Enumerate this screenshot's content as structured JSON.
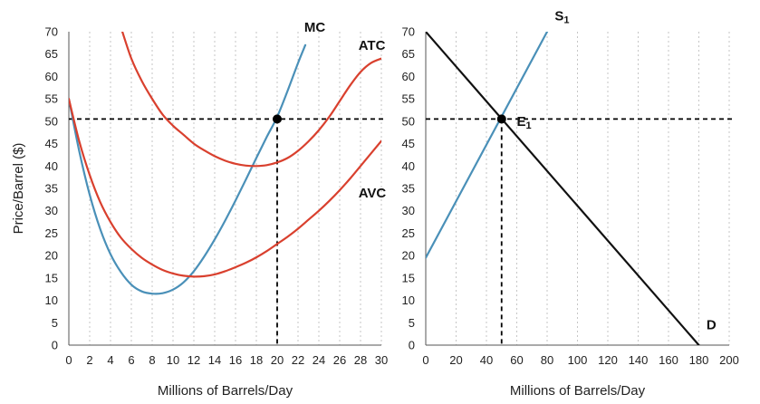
{
  "colors": {
    "blue": "#4a90b8",
    "red": "#d9402e",
    "black": "#111111"
  },
  "chart_data": [
    {
      "type": "line",
      "title": "",
      "xlabel": "Millions of Barrels/Day",
      "ylabel": "Price/Barrel ($)",
      "xlim": [
        0,
        30
      ],
      "ylim": [
        0,
        70
      ],
      "xticks": [
        0,
        2,
        4,
        6,
        8,
        10,
        12,
        14,
        16,
        18,
        20,
        22,
        24,
        26,
        28,
        30
      ],
      "yticks": [
        0,
        5,
        10,
        15,
        20,
        25,
        30,
        35,
        40,
        45,
        50,
        55,
        60,
        65,
        70
      ],
      "grid": "vertical dotted",
      "series": [
        {
          "name": "MC",
          "label": "MC",
          "color": "#4a90b8",
          "x": [
            0,
            1,
            2,
            3,
            4,
            5,
            6,
            7,
            8,
            9,
            10,
            11,
            12,
            13,
            14,
            15,
            16,
            17,
            18,
            19,
            20,
            21,
            22,
            22.7
          ],
          "y": [
            55,
            43.3,
            33.6,
            26,
            20.3,
            16.3,
            13.5,
            12,
            11.5,
            11.6,
            12.4,
            14,
            16.5,
            19.8,
            23.6,
            27.8,
            32.3,
            37,
            41.8,
            46.5,
            51,
            56.8,
            63,
            67
          ]
        },
        {
          "name": "ATC",
          "label": "ATC",
          "color": "#d9402e",
          "x": [
            5,
            6,
            7,
            8,
            9,
            10,
            11,
            12,
            13,
            14,
            15,
            16,
            17,
            18,
            19,
            20,
            21,
            22,
            23,
            24,
            25,
            26,
            27,
            28,
            29,
            30
          ],
          "y": [
            71,
            64,
            59,
            55,
            51.5,
            49,
            47,
            45,
            43.5,
            42.2,
            41.2,
            40.5,
            40.1,
            40,
            40.2,
            40.8,
            41.8,
            43.4,
            45.5,
            48,
            51,
            54.5,
            58,
            61,
            63,
            64
          ]
        },
        {
          "name": "AVC",
          "label": "AVC",
          "color": "#d9402e",
          "x": [
            0,
            1,
            2,
            3,
            4,
            5,
            6,
            7,
            8,
            9,
            10,
            11,
            12,
            13,
            14,
            15,
            16,
            17,
            18,
            19,
            20,
            21,
            22,
            23,
            24,
            25,
            26,
            27,
            28,
            29,
            30
          ],
          "y": [
            55,
            45.5,
            38,
            32,
            27.5,
            24,
            21.5,
            19.5,
            18,
            16.8,
            16,
            15.5,
            15.3,
            15.4,
            15.8,
            16.5,
            17.4,
            18.4,
            19.6,
            21,
            22.6,
            24.2,
            26,
            28,
            30,
            32.2,
            34.6,
            37.2,
            40,
            42.8,
            45.6
          ]
        }
      ],
      "points": [
        {
          "label": "",
          "x": 20,
          "y": 50.5
        }
      ],
      "guides": {
        "x": 20,
        "y": 50.5
      },
      "label_positions": {
        "MC": [
          22.6,
          70
        ],
        "ATC": [
          27.8,
          66
        ],
        "AVC": [
          27.8,
          33
        ]
      }
    },
    {
      "type": "line",
      "title": "",
      "xlabel": "Millions of Barrels/Day",
      "ylabel": "",
      "xlim": [
        0,
        200
      ],
      "ylim": [
        0,
        70
      ],
      "xticks": [
        0,
        20,
        40,
        60,
        80,
        100,
        120,
        140,
        160,
        180,
        200
      ],
      "yticks": [
        0,
        5,
        10,
        15,
        20,
        25,
        30,
        35,
        40,
        45,
        50,
        55,
        60,
        65,
        70
      ],
      "grid": "vertical dotted",
      "series": [
        {
          "name": "S1",
          "label": "S",
          "subscript": "1",
          "color": "#4a90b8",
          "x": [
            0,
            80
          ],
          "y": [
            19.5,
            70
          ]
        },
        {
          "name": "D",
          "label": "D",
          "color": "#111111",
          "x": [
            0,
            180
          ],
          "y": [
            70,
            0
          ]
        }
      ],
      "points": [
        {
          "label": "E",
          "subscript": "1",
          "x": 50,
          "y": 50.5
        }
      ],
      "guides": {
        "x": 50,
        "y": 50.5
      },
      "label_positions": {
        "S1": [
          85,
          72.5
        ],
        "D": [
          185,
          3.5
        ],
        "E1": [
          60,
          49
        ]
      }
    }
  ]
}
